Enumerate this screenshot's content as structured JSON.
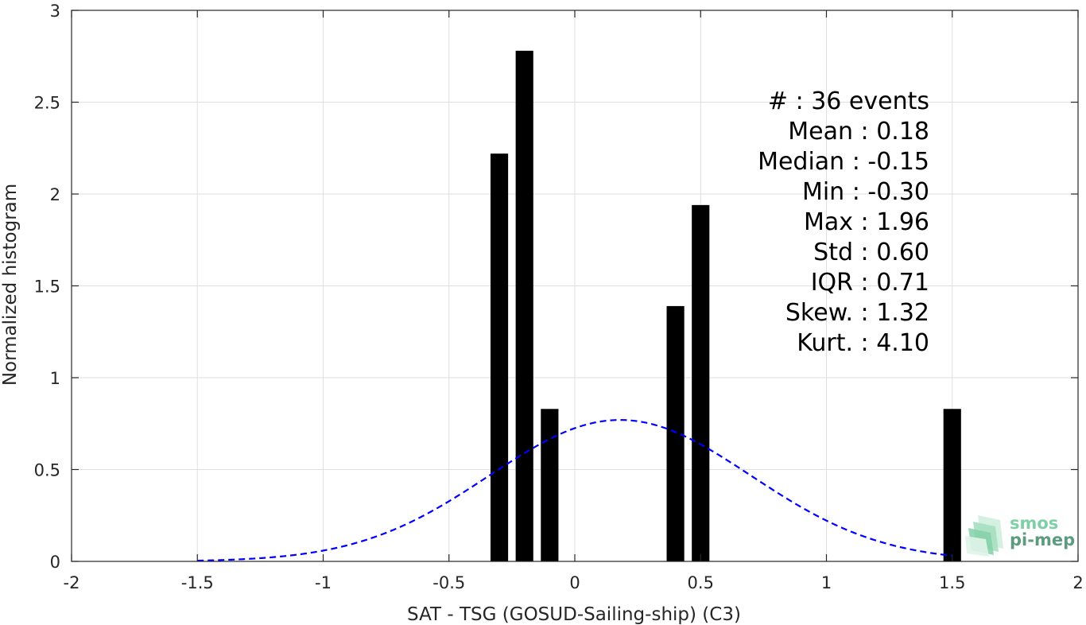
{
  "chart_data": {
    "type": "bar",
    "title": "",
    "xlabel": "SAT - TSG (GOSUD-Sailing-ship) (C3)",
    "ylabel": "Normalized histogram",
    "xlim": [
      -2,
      2
    ],
    "ylim": [
      0,
      3
    ],
    "xticks": [
      -2,
      -1.5,
      -1,
      -0.5,
      0,
      0.5,
      1,
      1.5,
      2
    ],
    "xtick_labels": [
      "-2",
      "-1.5",
      "-1",
      "-0.5",
      "0",
      "0.5",
      "1",
      "1.5",
      "2"
    ],
    "yticks": [
      0,
      0.5,
      1,
      1.5,
      2,
      2.5,
      3
    ],
    "ytick_labels": [
      "0",
      "0.5",
      "1",
      "1.5",
      "2",
      "2.5",
      "3"
    ],
    "grid": true,
    "bar_width": 0.07,
    "bar_color": "#000000",
    "bars": [
      {
        "x": -0.3,
        "value": 2.22
      },
      {
        "x": -0.2,
        "value": 2.78
      },
      {
        "x": -0.1,
        "value": 0.83
      },
      {
        "x": 0.4,
        "value": 1.39
      },
      {
        "x": 0.5,
        "value": 1.94
      },
      {
        "x": 1.5,
        "value": 0.83
      }
    ],
    "fit_curve": {
      "style": "dashed",
      "color": "#0000ff",
      "mean": 0.18,
      "std": 0.52,
      "amplitude": 0.77,
      "x_range": [
        -1.5,
        1.5
      ]
    },
    "stats": [
      {
        "label": "#  ",
        "value": ": 36 events"
      },
      {
        "label": "Mean ",
        "value": ": 0.18 "
      },
      {
        "label": "Median ",
        "value": ": -0.15 "
      },
      {
        "label": "Min ",
        "value": ": -0.30 "
      },
      {
        "label": "Max ",
        "value": ": 1.96 "
      },
      {
        "label": "Std ",
        "value": ": 0.60 "
      },
      {
        "label": "IQR ",
        "value": ": 0.71 "
      },
      {
        "label": "Skew. ",
        "value": ": 1.32"
      },
      {
        "label": "Kurt. ",
        "value": ": 4.10"
      }
    ]
  },
  "logo": {
    "line1": "smos",
    "line2": "pi-mep",
    "color1": "#7fcfa5",
    "color2": "#5c9b7d"
  }
}
